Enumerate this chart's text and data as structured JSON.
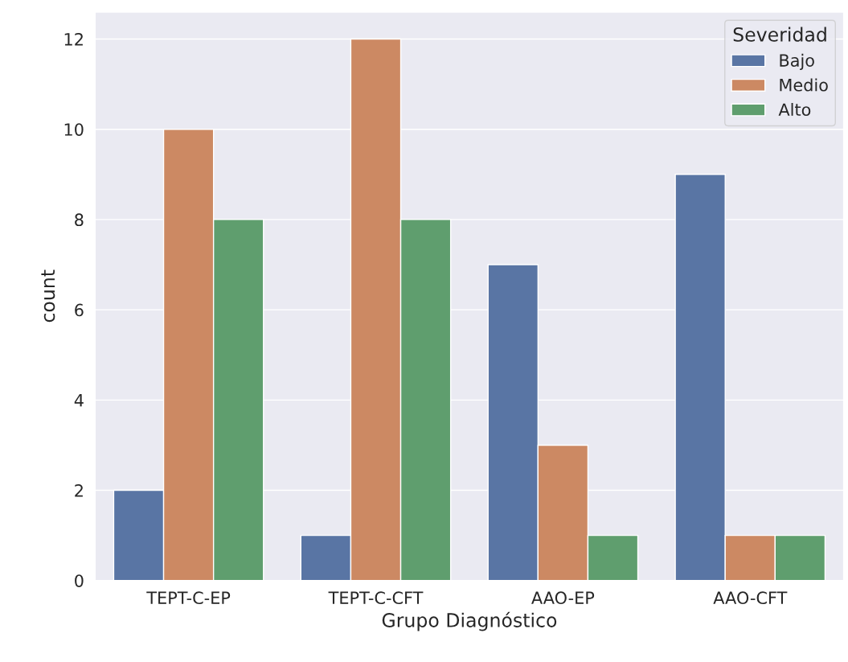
{
  "chart_data": {
    "type": "bar",
    "xlabel": "Grupo Diagnóstico",
    "ylabel": "count",
    "categories": [
      "TEPT-C-EP",
      "TEPT-C-CFT",
      "AAO-EP",
      "AAO-CFT"
    ],
    "series": [
      {
        "name": "Bajo",
        "color": "#5975a4",
        "values": [
          2,
          1,
          7,
          9
        ]
      },
      {
        "name": "Medio",
        "color": "#cc8963",
        "values": [
          10,
          12,
          3,
          1
        ]
      },
      {
        "name": "Alto",
        "color": "#5f9e6e",
        "values": [
          8,
          8,
          1,
          1
        ]
      }
    ],
    "ylim": [
      0,
      12.6
    ],
    "yticks": [
      0,
      2,
      4,
      6,
      8,
      10,
      12
    ],
    "grid": "y",
    "legend": "top right",
    "legend_title": "Severidad"
  }
}
